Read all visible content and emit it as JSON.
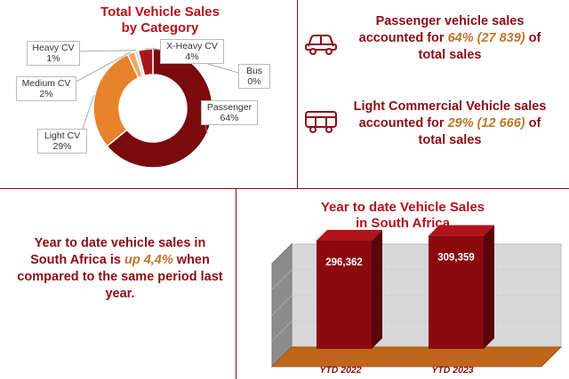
{
  "donut": {
    "title_line1": "Total Vehicle Sales",
    "title_line2": "by Category",
    "labels": [
      {
        "name": "Heavy CV",
        "pct": "1%"
      },
      {
        "name": "X-Heavy CV",
        "pct": "4%"
      },
      {
        "name": "Medium CV",
        "pct": "2%"
      },
      {
        "name": "Bus",
        "pct": "0%"
      },
      {
        "name": "Passenger",
        "pct": "64%"
      },
      {
        "name": "Light CV",
        "pct": "29%"
      }
    ]
  },
  "passenger_stat": {
    "line1": "Passenger vehicle sales",
    "line2_prefix": "accounted for",
    "highlight": "64% (27 839)",
    "line2_suffix": "of",
    "line3": "total sales"
  },
  "lcv_stat": {
    "line1": "Light Commercial Vehicle sales",
    "line2_prefix": "accounted for",
    "highlight": "29% (12 666)",
    "line2_suffix": "of",
    "line3": "total sales"
  },
  "ytd_text": {
    "line1": "Year to date vehicle sales in",
    "line2_prefix": "South Africa is",
    "highlight": "up 4,4%",
    "line2_suffix": "when",
    "line3": "compared to the same period last",
    "line4": "year."
  },
  "bar": {
    "title_line1": "Year to date Vehicle Sales",
    "title_line2": "in South Africa"
  },
  "colors": {
    "dark_red": "#7a0a0e",
    "orange": "#e8822b",
    "title_red": "#b3121b",
    "floor": "#c0661b"
  },
  "icons": [
    "car-icon",
    "bus-icon"
  ],
  "chart_data": [
    {
      "type": "pie",
      "title": "Total Vehicle Sales by Category",
      "categories": [
        "Passenger",
        "Light CV",
        "Medium CV",
        "Heavy CV",
        "X-Heavy CV",
        "Bus"
      ],
      "values": [
        64,
        29,
        2,
        1,
        4,
        0
      ],
      "unit": "%"
    },
    {
      "type": "bar",
      "title": "Year to date Vehicle Sales in South Africa",
      "categories": [
        "YTD 2022",
        "YTD 2023"
      ],
      "values": [
        296362,
        309359
      ],
      "value_labels": [
        "296,362",
        "309,359"
      ],
      "ylim": [
        0,
        340000
      ]
    }
  ]
}
